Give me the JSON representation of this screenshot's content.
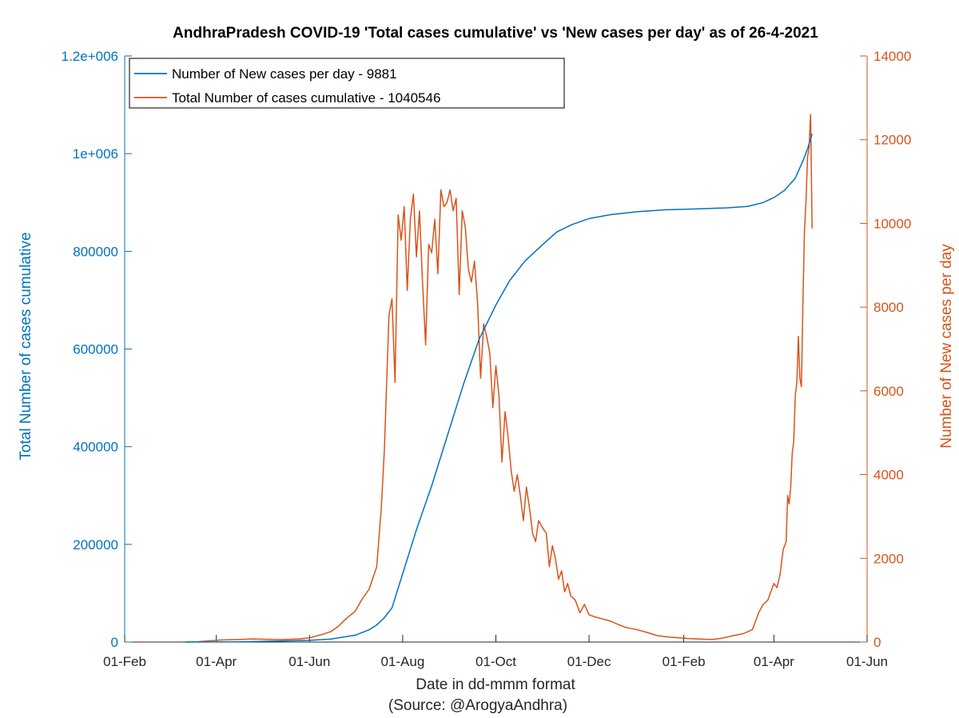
{
  "chart_data": {
    "type": "line",
    "title": "AndhraPradesh COVID-19 'Total cases cumulative' vs 'New cases per day' as of 26-4-2021",
    "xlabel": "Date in dd-mmm format",
    "source": "(Source: @ArogyaAndhra)",
    "ylabel_left": "Total Number of cases cumulative",
    "ylabel_right": "Number of New cases per day",
    "x_range": [
      "2020-02-01",
      "2021-06-01"
    ],
    "x_ticks": [
      {
        "date": "2020-02-01",
        "label": "01-Feb"
      },
      {
        "date": "2020-04-01",
        "label": "01-Apr"
      },
      {
        "date": "2020-06-01",
        "label": "01-Jun"
      },
      {
        "date": "2020-08-01",
        "label": "01-Aug"
      },
      {
        "date": "2020-10-01",
        "label": "01-Oct"
      },
      {
        "date": "2020-12-01",
        "label": "01-Dec"
      },
      {
        "date": "2021-02-01",
        "label": "01-Feb"
      },
      {
        "date": "2021-04-01",
        "label": "01-Apr"
      },
      {
        "date": "2021-06-01",
        "label": "01-Jun"
      }
    ],
    "y_left_range": [
      0,
      1200000
    ],
    "y_left_ticks": [
      {
        "value": 0,
        "label": "0"
      },
      {
        "value": 200000,
        "label": "200000"
      },
      {
        "value": 400000,
        "label": "400000"
      },
      {
        "value": 600000,
        "label": "600000"
      },
      {
        "value": 800000,
        "label": "800000"
      },
      {
        "value": 1000000,
        "label": "1e+006"
      },
      {
        "value": 1200000,
        "label": "1.2e+006"
      }
    ],
    "y_right_range": [
      0,
      14000
    ],
    "y_right_ticks": [
      {
        "value": 0,
        "label": "0"
      },
      {
        "value": 2000,
        "label": "2000"
      },
      {
        "value": 4000,
        "label": "4000"
      },
      {
        "value": 6000,
        "label": "6000"
      },
      {
        "value": 8000,
        "label": "8000"
      },
      {
        "value": 10000,
        "label": "10000"
      },
      {
        "value": 12000,
        "label": "12000"
      },
      {
        "value": 14000,
        "label": "14000"
      }
    ],
    "legend_placement": "top-left",
    "grid": false,
    "colors": {
      "left_axis": "#0072BD",
      "right_axis": "#D95319",
      "cumulative_line": "#0072BD",
      "daily_line": "#D95319"
    },
    "series": [
      {
        "name": "Number of New cases per day - 9881",
        "axis": "right",
        "color": "#D95319",
        "points": [
          [
            "2020-03-12",
            0
          ],
          [
            "2020-03-20",
            8
          ],
          [
            "2020-03-28",
            30
          ],
          [
            "2020-04-05",
            50
          ],
          [
            "2020-04-15",
            60
          ],
          [
            "2020-04-25",
            75
          ],
          [
            "2020-05-05",
            65
          ],
          [
            "2020-05-15",
            60
          ],
          [
            "2020-05-25",
            75
          ],
          [
            "2020-06-01",
            100
          ],
          [
            "2020-06-10",
            190
          ],
          [
            "2020-06-15",
            250
          ],
          [
            "2020-06-20",
            380
          ],
          [
            "2020-06-25",
            560
          ],
          [
            "2020-07-01",
            740
          ],
          [
            "2020-07-05",
            1000
          ],
          [
            "2020-07-10",
            1260
          ],
          [
            "2020-07-15",
            1800
          ],
          [
            "2020-07-18",
            3200
          ],
          [
            "2020-07-20",
            4600
          ],
          [
            "2020-07-23",
            7800
          ],
          [
            "2020-07-25",
            8200
          ],
          [
            "2020-07-27",
            6200
          ],
          [
            "2020-07-29",
            10200
          ],
          [
            "2020-07-31",
            9600
          ],
          [
            "2020-08-02",
            10400
          ],
          [
            "2020-08-04",
            8400
          ],
          [
            "2020-08-06",
            10100
          ],
          [
            "2020-08-08",
            10700
          ],
          [
            "2020-08-10",
            9200
          ],
          [
            "2020-08-12",
            10300
          ],
          [
            "2020-08-14",
            8600
          ],
          [
            "2020-08-16",
            7100
          ],
          [
            "2020-08-18",
            9500
          ],
          [
            "2020-08-20",
            9300
          ],
          [
            "2020-08-22",
            10100
          ],
          [
            "2020-08-24",
            8800
          ],
          [
            "2020-08-26",
            10800
          ],
          [
            "2020-08-28",
            10400
          ],
          [
            "2020-08-30",
            10500
          ],
          [
            "2020-09-01",
            10800
          ],
          [
            "2020-09-03",
            10300
          ],
          [
            "2020-09-05",
            10600
          ],
          [
            "2020-09-07",
            8300
          ],
          [
            "2020-09-09",
            10300
          ],
          [
            "2020-09-11",
            9900
          ],
          [
            "2020-09-13",
            8900
          ],
          [
            "2020-09-15",
            8600
          ],
          [
            "2020-09-17",
            9100
          ],
          [
            "2020-09-19",
            8100
          ],
          [
            "2020-09-21",
            6300
          ],
          [
            "2020-09-23",
            7600
          ],
          [
            "2020-09-25",
            7300
          ],
          [
            "2020-09-27",
            6900
          ],
          [
            "2020-09-29",
            5600
          ],
          [
            "2020-10-01",
            6600
          ],
          [
            "2020-10-03",
            5900
          ],
          [
            "2020-10-05",
            4300
          ],
          [
            "2020-10-07",
            5500
          ],
          [
            "2020-10-09",
            4900
          ],
          [
            "2020-10-11",
            4100
          ],
          [
            "2020-10-13",
            3600
          ],
          [
            "2020-10-15",
            4000
          ],
          [
            "2020-10-17",
            3500
          ],
          [
            "2020-10-19",
            2900
          ],
          [
            "2020-10-21",
            3700
          ],
          [
            "2020-10-23",
            3200
          ],
          [
            "2020-10-25",
            2600
          ],
          [
            "2020-10-27",
            2400
          ],
          [
            "2020-10-29",
            2900
          ],
          [
            "2020-11-01",
            2700
          ],
          [
            "2020-11-03",
            2600
          ],
          [
            "2020-11-05",
            1800
          ],
          [
            "2020-11-07",
            2300
          ],
          [
            "2020-11-09",
            2000
          ],
          [
            "2020-11-11",
            1500
          ],
          [
            "2020-11-13",
            1700
          ],
          [
            "2020-11-15",
            1200
          ],
          [
            "2020-11-17",
            1400
          ],
          [
            "2020-11-19",
            1100
          ],
          [
            "2020-11-22",
            1000
          ],
          [
            "2020-11-25",
            700
          ],
          [
            "2020-11-28",
            900
          ],
          [
            "2020-12-01",
            650
          ],
          [
            "2020-12-05",
            600
          ],
          [
            "2020-12-10",
            550
          ],
          [
            "2020-12-15",
            500
          ],
          [
            "2020-12-20",
            420
          ],
          [
            "2020-12-25",
            350
          ],
          [
            "2021-01-01",
            300
          ],
          [
            "2021-01-08",
            230
          ],
          [
            "2021-01-15",
            150
          ],
          [
            "2021-01-22",
            120
          ],
          [
            "2021-01-29",
            100
          ],
          [
            "2021-02-05",
            80
          ],
          [
            "2021-02-12",
            70
          ],
          [
            "2021-02-19",
            60
          ],
          [
            "2021-02-26",
            90
          ],
          [
            "2021-03-05",
            150
          ],
          [
            "2021-03-12",
            200
          ],
          [
            "2021-03-18",
            300
          ],
          [
            "2021-03-22",
            700
          ],
          [
            "2021-03-25",
            900
          ],
          [
            "2021-03-28",
            1000
          ],
          [
            "2021-04-01",
            1400
          ],
          [
            "2021-04-03",
            1300
          ],
          [
            "2021-04-05",
            1600
          ],
          [
            "2021-04-07",
            2200
          ],
          [
            "2021-04-09",
            2400
          ],
          [
            "2021-04-10",
            3500
          ],
          [
            "2021-04-11",
            3300
          ],
          [
            "2021-04-12",
            3700
          ],
          [
            "2021-04-13",
            4500
          ],
          [
            "2021-04-14",
            4800
          ],
          [
            "2021-04-15",
            5900
          ],
          [
            "2021-04-16",
            6200
          ],
          [
            "2021-04-17",
            7300
          ],
          [
            "2021-04-18",
            6300
          ],
          [
            "2021-04-19",
            6100
          ],
          [
            "2021-04-20",
            8100
          ],
          [
            "2021-04-21",
            9800
          ],
          [
            "2021-04-22",
            10500
          ],
          [
            "2021-04-23",
            11600
          ],
          [
            "2021-04-24",
            11800
          ],
          [
            "2021-04-25",
            12600
          ],
          [
            "2021-04-26",
            9881
          ]
        ]
      },
      {
        "name": "Total Number of cases cumulative - 1040546",
        "axis": "left",
        "color": "#0072BD",
        "points": [
          [
            "2020-03-12",
            0
          ],
          [
            "2020-04-15",
            500
          ],
          [
            "2020-05-15",
            2300
          ],
          [
            "2020-06-01",
            3500
          ],
          [
            "2020-06-15",
            6000
          ],
          [
            "2020-07-01",
            14000
          ],
          [
            "2020-07-10",
            25000
          ],
          [
            "2020-07-15",
            35000
          ],
          [
            "2020-07-20",
            50000
          ],
          [
            "2020-07-25",
            70000
          ],
          [
            "2020-08-01",
            140000
          ],
          [
            "2020-08-10",
            230000
          ],
          [
            "2020-08-20",
            320000
          ],
          [
            "2020-08-30",
            420000
          ],
          [
            "2020-09-10",
            530000
          ],
          [
            "2020-09-20",
            620000
          ],
          [
            "2020-10-01",
            690000
          ],
          [
            "2020-10-10",
            740000
          ],
          [
            "2020-10-20",
            780000
          ],
          [
            "2020-11-01",
            815000
          ],
          [
            "2020-11-10",
            840000
          ],
          [
            "2020-11-20",
            855000
          ],
          [
            "2020-12-01",
            867000
          ],
          [
            "2020-12-15",
            875000
          ],
          [
            "2021-01-01",
            881000
          ],
          [
            "2021-01-20",
            885000
          ],
          [
            "2021-02-10",
            887000
          ],
          [
            "2021-03-01",
            889000
          ],
          [
            "2021-03-15",
            892000
          ],
          [
            "2021-03-25",
            900000
          ],
          [
            "2021-04-01",
            910000
          ],
          [
            "2021-04-08",
            925000
          ],
          [
            "2021-04-15",
            950000
          ],
          [
            "2021-04-20",
            985000
          ],
          [
            "2021-04-23",
            1010000
          ],
          [
            "2021-04-26",
            1040546
          ]
        ]
      }
    ]
  }
}
